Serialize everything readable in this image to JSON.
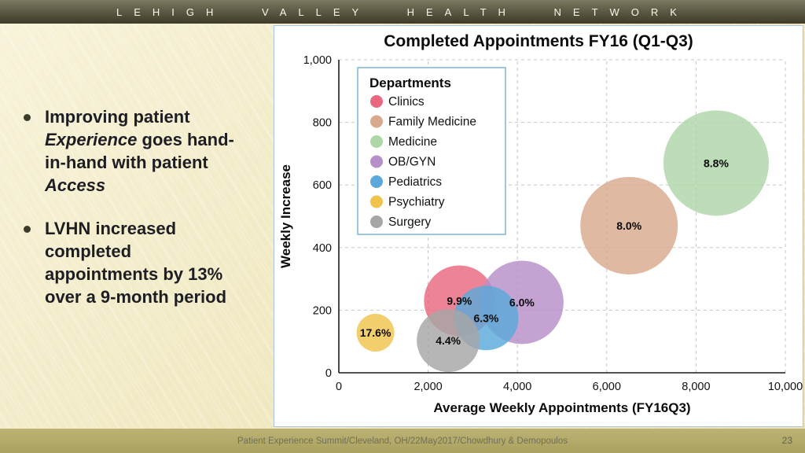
{
  "slide": {
    "header_title": "LEHIGH VALLEY HEALTH NETWORK",
    "bullet1": {
      "t1": "Improving patient ",
      "t2": "Experience",
      "t3": " goes hand-in-hand with patient ",
      "t4": "Access"
    },
    "bullet2": "LVHN increased completed appointments by 13% over a 9-month period",
    "footer_text": "Patient Experience Summit/Cleveland, OH/22May2017/Chowdhury & Demopoulos",
    "page_number": "23"
  },
  "chart_data": {
    "type": "scatter",
    "title": "Completed Appointments FY16 (Q1-Q3)",
    "xlabel": "Average Weekly Appointments (FY16Q3)",
    "ylabel": "Weekly Increase",
    "legend_title": "Departments",
    "legend_position": "upper-left",
    "grid": true,
    "xlim": [
      0,
      10000
    ],
    "ylim": [
      0,
      1000
    ],
    "x_ticks": [
      0,
      2000,
      4000,
      6000,
      8000,
      10000
    ],
    "y_ticks": [
      0,
      200,
      400,
      600,
      800,
      1000
    ],
    "series": [
      {
        "name": "Clinics",
        "color": "#e9687f",
        "x": 2700,
        "y": 230,
        "radius_px": 45,
        "label": "9.9%"
      },
      {
        "name": "Family Medicine",
        "color": "#d9a98e",
        "x": 6500,
        "y": 470,
        "radius_px": 62,
        "label": "8.0%"
      },
      {
        "name": "Medicine",
        "color": "#aed6a8",
        "x": 8450,
        "y": 670,
        "radius_px": 67,
        "label": "8.8%"
      },
      {
        "name": "OB/GYN",
        "color": "#b78fc8",
        "x": 4100,
        "y": 225,
        "radius_px": 53,
        "label": "6.0%"
      },
      {
        "name": "Pediatrics",
        "color": "#5aa9da",
        "x": 3300,
        "y": 175,
        "radius_px": 41,
        "label": "6.3%"
      },
      {
        "name": "Psychiatry",
        "color": "#efc44c",
        "x": 820,
        "y": 128,
        "radius_px": 24,
        "label": "17.6%"
      },
      {
        "name": "Surgery",
        "color": "#a6a6a6",
        "x": 2450,
        "y": 103,
        "radius_px": 40,
        "label": "4.4%"
      }
    ]
  }
}
